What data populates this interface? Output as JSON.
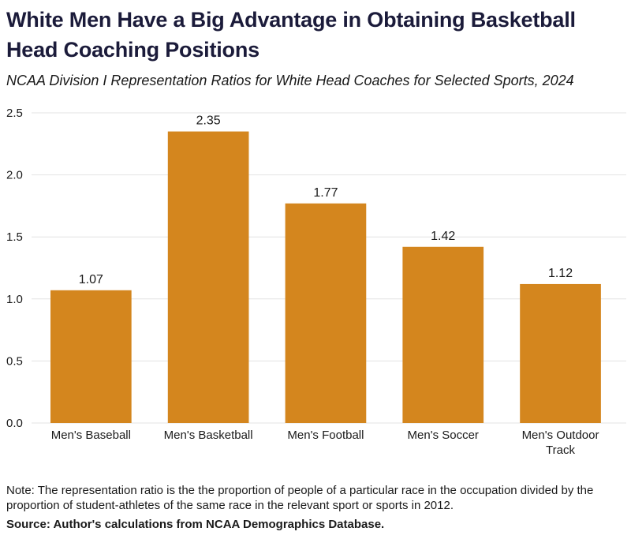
{
  "title": "White Men Have a Big Advantage in Obtaining Basketball Head Coaching Positions",
  "subtitle": "NCAA Division I Representation Ratios for White Head Coaches for Selected Sports, 2024",
  "note": "Note: The representation ratio is the the proportion of people of a particular race in the occupation divided by the proportion of student-athletes of the same race in the relevant sport or sports in 2012.",
  "source": "Source: Author's calculations from NCAA Demographics Database.",
  "colors": {
    "bar": "#D4861E",
    "grid": "#e3e3e3"
  },
  "chart_data": {
    "type": "bar",
    "categories": [
      "Men's Baseball",
      "Men's Basketball",
      "Men's Football",
      "Men's Soccer",
      "Men's Outdoor Track"
    ],
    "values": [
      1.07,
      2.35,
      1.77,
      1.42,
      1.12
    ],
    "value_labels": [
      "1.07",
      "2.35",
      "1.77",
      "1.42",
      "1.12"
    ],
    "yticks": [
      0.0,
      0.5,
      1.0,
      1.5,
      2.0,
      2.5
    ],
    "ytick_labels": [
      "0.0",
      "0.5",
      "1.0",
      "1.5",
      "2.0",
      "2.5"
    ],
    "ylim": [
      0,
      2.5
    ],
    "grid": true,
    "legend": "none"
  }
}
